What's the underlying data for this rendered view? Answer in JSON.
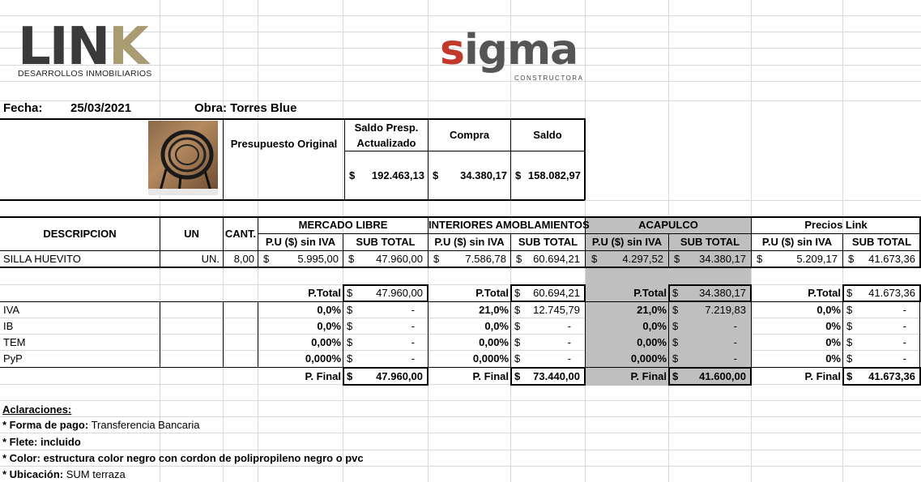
{
  "logos": {
    "link_name": "LINK",
    "link_tagline": "DESARROLLOS INMOBILIARIOS",
    "sigma_name": "sigma",
    "sigma_tagline": "CONSTRUCTORA"
  },
  "header": {
    "fecha_label": "Fecha:",
    "fecha_value": "25/03/2021",
    "obra": "Obra: Torres Blue"
  },
  "budget": {
    "presupuesto_label": "Presupuesto Original",
    "saldo_presp_label_1": "Saldo Presp.",
    "saldo_presp_label_2": "Actualizado",
    "compra_label": "Compra",
    "saldo_label": "Saldo",
    "saldo_presp_value": "192.463,13",
    "compra_value": "34.380,17",
    "saldo_value": "158.082,97",
    "currency": "$"
  },
  "table": {
    "col_descripcion": "DESCRIPCION",
    "col_un": "UN",
    "col_cant": "CANT.",
    "vendors": [
      "MERCADO LIBRE",
      "INTERIORES AMOBLAMIENTOS",
      "ACAPULCO",
      "Precios Link"
    ],
    "pu_label": "P.U ($) sin IVA",
    "sub_label": "SUB TOTAL",
    "item": {
      "descripcion": "SILLA HUEVITO",
      "un": "UN.",
      "cant": "8,00",
      "prices": [
        {
          "pu": "5.995,00",
          "sub": "47.960,00"
        },
        {
          "pu": "7.586,78",
          "sub": "60.694,21"
        },
        {
          "pu": "4.297,52",
          "sub": "34.380,17"
        },
        {
          "pu": "5.209,17",
          "sub": "41.673,36"
        }
      ]
    }
  },
  "totals": {
    "ptotal_label": "P.Total",
    "pfinal_label": "P. Final",
    "row_labels": [
      "IVA",
      "IB",
      "TEM",
      "PyP"
    ],
    "vendors": [
      {
        "ptotal": "47.960,00",
        "rates": [
          "0,0%",
          "0,0%",
          "0,00%",
          "0,000%"
        ],
        "amounts": [
          "-",
          "-",
          "-",
          "-"
        ],
        "pfinal": "47.960,00"
      },
      {
        "ptotal": "60.694,21",
        "rates": [
          "21,0%",
          "0,0%",
          "0,00%",
          "0,000%"
        ],
        "amounts": [
          "12.745,79",
          "-",
          "-",
          "-"
        ],
        "pfinal": "73.440,00"
      },
      {
        "ptotal": "34.380,17",
        "rates": [
          "21,0%",
          "0,0%",
          "0,00%",
          "0,000%"
        ],
        "amounts": [
          "7.219,83",
          "-",
          "-",
          "-"
        ],
        "pfinal": "41.600,00"
      },
      {
        "ptotal": "41.673,36",
        "rates": [
          "0,0%",
          "0%",
          "0%",
          "0%"
        ],
        "amounts": [
          "-",
          "-",
          "-",
          "-"
        ],
        "pfinal": "41.673,36"
      }
    ]
  },
  "notes": {
    "title": "Aclaraciones:",
    "forma_label": "* Forma de pago:",
    "forma_value": " Transferencia Bancaria",
    "flete": "* Flete: incluido",
    "color": "* Color: estructura color negro con cordon de polipropileno negro o pvc",
    "ubic_label": "* Ubicación:",
    "ubic_value": " SUM terraza"
  },
  "colors": {
    "highlight": "#bfbfbf",
    "gridline": "#d9d9d9"
  }
}
